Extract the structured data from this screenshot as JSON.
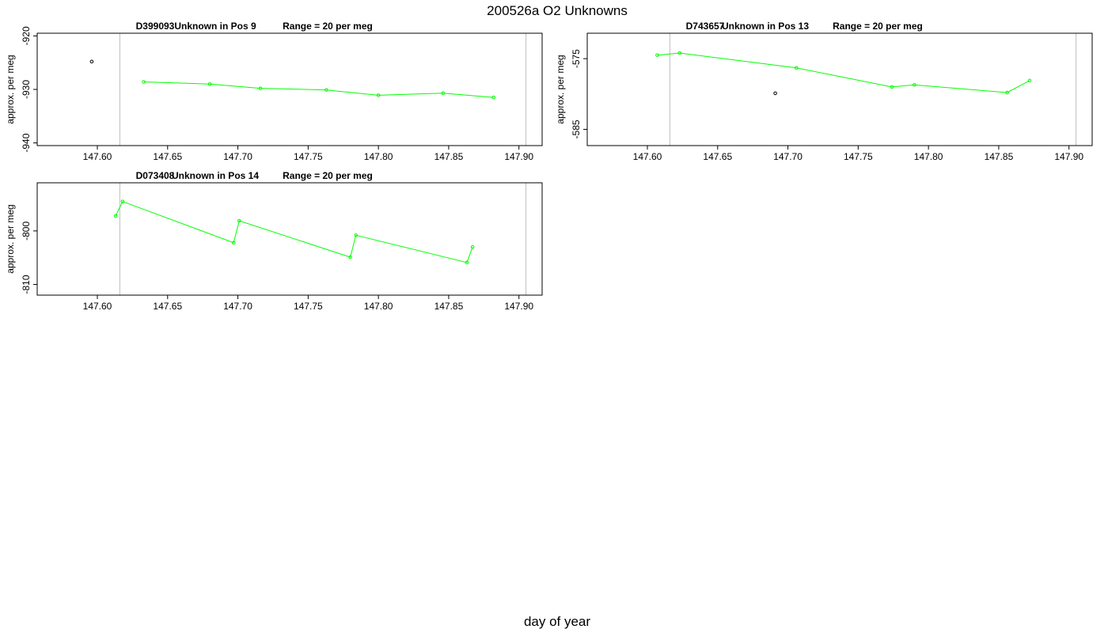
{
  "figure": {
    "title": "200526a  O2 Unknowns",
    "xlabel": "day of year"
  },
  "colors": {
    "series": "#00ff00",
    "outlier": "#000000",
    "vline": "#bebebe",
    "frame": "#000000"
  },
  "chart_data": [
    {
      "type": "line",
      "id": "D399093",
      "title": {
        "id": "D399093",
        "position": "Unknown in Pos 9",
        "range": "Range = 20 per meg"
      },
      "ylabel": "approx. per meg",
      "xlim": [
        147.5572,
        147.9165
      ],
      "ylim": [
        -940.5,
        -919.5
      ],
      "xticks": [
        "147.60",
        "147.65",
        "147.70",
        "147.75",
        "147.80",
        "147.85",
        "147.90"
      ],
      "yticks": [
        -920,
        -930,
        -940
      ],
      "vlines": [
        147.616,
        147.905
      ],
      "outliers": [
        {
          "x": 147.596,
          "y": -924.8
        }
      ],
      "series": [
        {
          "x": [
            147.633,
            147.68,
            147.716,
            147.763,
            147.8,
            147.846,
            147.882
          ],
          "y": [
            -928.6,
            -929.0,
            -929.8,
            -930.1,
            -931.1,
            -930.7,
            -931.5
          ]
        }
      ]
    },
    {
      "type": "line",
      "id": "D743657",
      "title": {
        "id": "D743657",
        "position": "Unknown in Pos 13",
        "range": "Range = 20 per meg"
      },
      "ylabel": "approx. per meg",
      "xlim": [
        147.5572,
        147.9165
      ],
      "ylim": [
        -587.3,
        -571.4
      ],
      "xticks": [
        "147.60",
        "147.65",
        "147.70",
        "147.75",
        "147.80",
        "147.85",
        "147.90"
      ],
      "yticks": [
        -575,
        -585
      ],
      "vlines": [
        147.616,
        147.905
      ],
      "outliers": [
        {
          "x": 147.691,
          "y": -579.9
        }
      ],
      "series": [
        {
          "x": [
            147.607,
            147.623,
            147.706,
            147.774,
            147.79,
            147.856,
            147.872
          ],
          "y": [
            -574.5,
            -574.2,
            -576.3,
            -579.0,
            -578.7,
            -579.8,
            -578.1
          ]
        }
      ]
    },
    {
      "type": "line",
      "id": "D073408",
      "title": {
        "id": "D073408",
        "position": "Unknown in Pos 14",
        "range": "Range = 20 per meg"
      },
      "ylabel": "approx. per meg",
      "xlim": [
        147.5572,
        147.9165
      ],
      "ylim": [
        -812.0,
        -791.0
      ],
      "xticks": [
        "147.60",
        "147.65",
        "147.70",
        "147.75",
        "147.80",
        "147.85",
        "147.90"
      ],
      "yticks": [
        -800,
        -810
      ],
      "vlines": [
        147.616,
        147.905
      ],
      "outliers": [],
      "series": [
        {
          "x": [
            147.613,
            147.618,
            147.697,
            147.701,
            147.78,
            147.784,
            147.863,
            147.867
          ],
          "y": [
            -797.2,
            -794.5,
            -802.2,
            -798.1,
            -804.9,
            -800.8,
            -805.9,
            -803.0
          ]
        }
      ]
    }
  ]
}
